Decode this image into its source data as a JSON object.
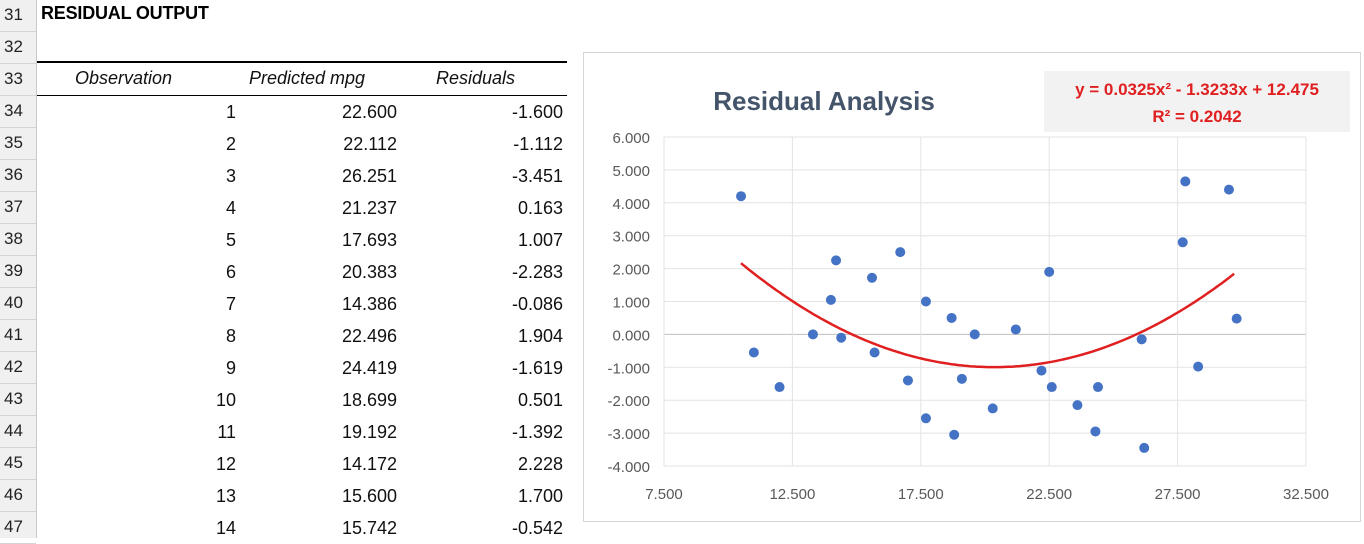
{
  "sheet": {
    "row_numbers": [
      "31",
      "32",
      "33",
      "34",
      "35",
      "36",
      "37",
      "38",
      "39",
      "40",
      "41",
      "42",
      "43",
      "44",
      "45",
      "46",
      "47"
    ],
    "title": "RESIDUAL OUTPUT",
    "headers": {
      "observation": "Observation",
      "predicted": "Predicted mpg",
      "residuals": "Residuals"
    },
    "rows": [
      {
        "obs": "1",
        "pred": "22.600",
        "res": "-1.600"
      },
      {
        "obs": "2",
        "pred": "22.112",
        "res": "-1.112"
      },
      {
        "obs": "3",
        "pred": "26.251",
        "res": "-3.451"
      },
      {
        "obs": "4",
        "pred": "21.237",
        "res": "0.163"
      },
      {
        "obs": "5",
        "pred": "17.693",
        "res": "1.007"
      },
      {
        "obs": "6",
        "pred": "20.383",
        "res": "-2.283"
      },
      {
        "obs": "7",
        "pred": "14.386",
        "res": "-0.086"
      },
      {
        "obs": "8",
        "pred": "22.496",
        "res": "1.904"
      },
      {
        "obs": "9",
        "pred": "24.419",
        "res": "-1.619"
      },
      {
        "obs": "10",
        "pred": "18.699",
        "res": "0.501"
      },
      {
        "obs": "11",
        "pred": "19.192",
        "res": "-1.392"
      },
      {
        "obs": "12",
        "pred": "14.172",
        "res": "2.228"
      },
      {
        "obs": "13",
        "pred": "15.600",
        "res": "1.700"
      },
      {
        "obs": "14",
        "pred": "15.742",
        "res": "-0.542"
      }
    ]
  },
  "chart_data": {
    "type": "scatter",
    "title": "Residual Analysis",
    "trendline_equation": "y = 0.0325x² - 1.3233x + 12.475",
    "r_squared": "R² = 0.2042",
    "trendline": {
      "type": "polynomial",
      "order": 2,
      "a": 0.0325,
      "b": -1.3233,
      "c": 12.475
    },
    "xlim": [
      7.5,
      32.5
    ],
    "ylim": [
      -4,
      6
    ],
    "x_ticks": [
      "7.500",
      "12.500",
      "17.500",
      "22.500",
      "27.500",
      "32.500"
    ],
    "y_ticks": [
      "6.000",
      "5.000",
      "4.000",
      "3.000",
      "2.000",
      "1.000",
      "0.000",
      "-1.000",
      "-2.000",
      "-3.000",
      "-4.000"
    ],
    "grid": true,
    "series_color": "#4472c4",
    "trend_color": "#e02020",
    "points": [
      [
        10.5,
        4.2
      ],
      [
        11.0,
        -0.55
      ],
      [
        12.0,
        -1.6
      ],
      [
        13.3,
        0.0
      ],
      [
        14.0,
        1.05
      ],
      [
        14.2,
        2.25
      ],
      [
        14.4,
        -0.1
      ],
      [
        15.6,
        1.72
      ],
      [
        15.7,
        -0.55
      ],
      [
        16.7,
        2.5
      ],
      [
        17.0,
        -1.4
      ],
      [
        17.7,
        1.0
      ],
      [
        17.7,
        -2.55
      ],
      [
        18.7,
        0.5
      ],
      [
        18.8,
        -3.05
      ],
      [
        19.1,
        -1.35
      ],
      [
        19.6,
        0.0
      ],
      [
        20.3,
        -2.25
      ],
      [
        21.2,
        0.15
      ],
      [
        22.2,
        -1.1
      ],
      [
        22.5,
        1.9
      ],
      [
        22.6,
        -1.6
      ],
      [
        23.6,
        -2.15
      ],
      [
        24.3,
        -2.95
      ],
      [
        24.4,
        -1.6
      ],
      [
        26.1,
        -0.15
      ],
      [
        26.2,
        -3.45
      ],
      [
        27.7,
        2.8
      ],
      [
        27.8,
        4.65
      ],
      [
        28.3,
        -0.98
      ],
      [
        29.5,
        4.4
      ],
      [
        29.8,
        0.48
      ]
    ]
  }
}
